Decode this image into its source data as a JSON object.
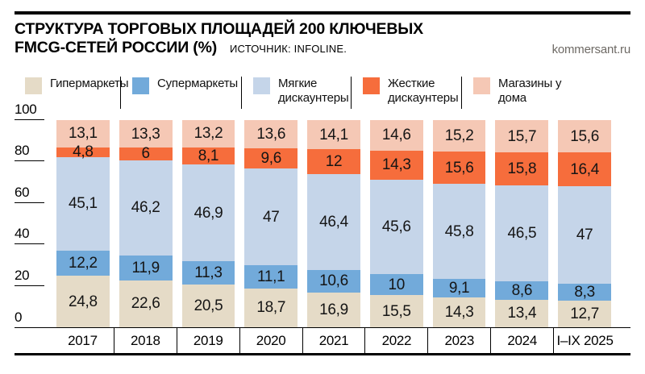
{
  "header": {
    "title_line1": "СТРУКТУРА ТОРГОВЫХ ПЛОЩАДЕЙ 200 КЛЮЧЕВЫХ",
    "title_line2": "FMCG-СЕТЕЙ РОССИИ (%)",
    "source": "ИСТОЧНИК: INFOLINE.",
    "brand": "kommersant.ru"
  },
  "legend": {
    "items": [
      {
        "label": "Гипермаркеты",
        "color": "#e5dbc7"
      },
      {
        "label": "Супермаркеты",
        "color": "#72aada"
      },
      {
        "label": "Мягкие дискаунтеры",
        "color": "#c5d5e9"
      },
      {
        "label": "Жесткие дискаунтеры",
        "color": "#f66d3c"
      },
      {
        "label": "Магазины у дома",
        "color": "#f5c8b5"
      }
    ]
  },
  "chart_data": {
    "type": "bar",
    "stacked": true,
    "title": "СТРУКТУРА ТОРГОВЫХ ПЛОЩАДЕЙ 200 КЛЮЧЕВЫХ FMCG-СЕТЕЙ РОССИИ (%)",
    "source": "ИСТОЧНИК: INFOLINE.",
    "categories": [
      "2017",
      "2018",
      "2019",
      "2020",
      "2021",
      "2022",
      "2023",
      "2024",
      "I–IX 2025"
    ],
    "series": [
      {
        "name": "Гипермаркеты",
        "color": "#e5dbc7",
        "values": [
          24.8,
          22.6,
          20.5,
          18.7,
          16.9,
          15.5,
          14.3,
          13.4,
          12.7
        ]
      },
      {
        "name": "Супермаркеты",
        "color": "#72aada",
        "values": [
          12.2,
          11.9,
          11.3,
          11.1,
          10.6,
          10,
          9.1,
          8.6,
          8.3
        ]
      },
      {
        "name": "Мягкие дискаунтеры",
        "color": "#c5d5e9",
        "values": [
          45.1,
          46.2,
          46.9,
          47,
          46.4,
          45.6,
          45.8,
          46.5,
          47
        ]
      },
      {
        "name": "Жесткие дискаунтеры",
        "color": "#f66d3c",
        "values": [
          4.8,
          6,
          8.1,
          9.6,
          12,
          14.3,
          15.6,
          15.8,
          16.4
        ]
      },
      {
        "name": "Магазины у дома",
        "color": "#f5c8b5",
        "values": [
          13.1,
          13.3,
          13.2,
          13.6,
          14.1,
          14.6,
          15.2,
          15.7,
          15.6
        ]
      }
    ],
    "ylim": [
      0,
      100
    ],
    "yticks": [
      0,
      20,
      40,
      60,
      80,
      100
    ],
    "decimal_separator": ",",
    "legend_position": "top",
    "grid": false,
    "xlabel": "",
    "ylabel": ""
  }
}
